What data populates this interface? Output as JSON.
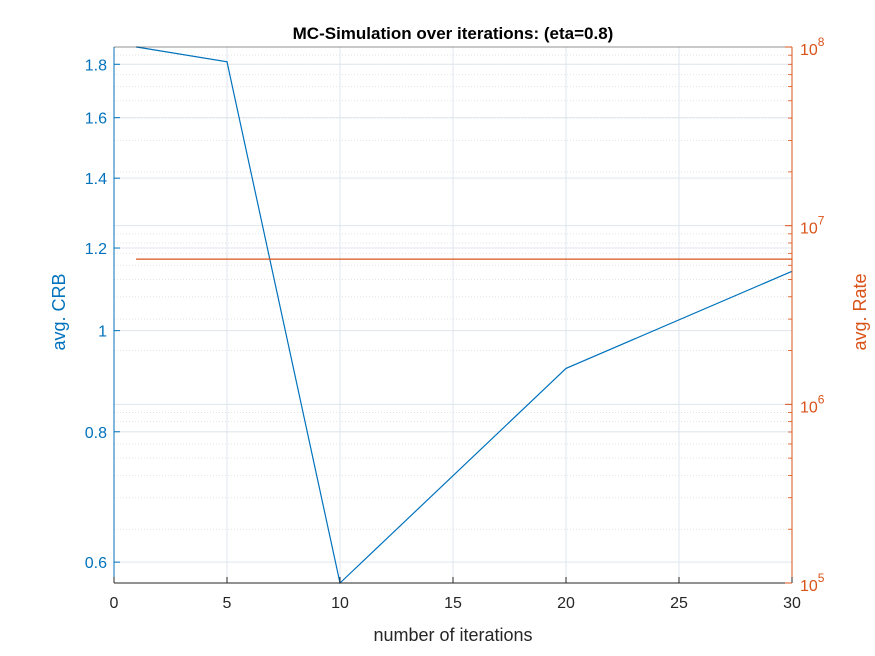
{
  "chart_data": {
    "type": "line",
    "title": "MC-Simulation over iterations: (eta=0.8)",
    "xlabel": "number of iterations",
    "xlim": [
      0,
      30
    ],
    "xticks": [
      0,
      5,
      10,
      15,
      20,
      25,
      30
    ],
    "grid": true,
    "y_left": {
      "label": "avg. CRB",
      "scale": "log",
      "lim": [
        0.573,
        1.87
      ],
      "ticks": [
        0.6,
        0.8,
        1,
        1.2,
        1.4,
        1.6,
        1.8
      ],
      "color": "#0072BD"
    },
    "y_right": {
      "label": "avg. Rate",
      "scale": "log",
      "lim": [
        100000,
        100000000
      ],
      "ticks": [
        {
          "value": 100000,
          "base": "10",
          "exp": "5"
        },
        {
          "value": 1000000,
          "base": "10",
          "exp": "6"
        },
        {
          "value": 10000000,
          "base": "10",
          "exp": "7"
        },
        {
          "value": 100000000,
          "base": "10",
          "exp": "8"
        }
      ],
      "color": "#D95319"
    },
    "series": [
      {
        "axis": "left",
        "color": "#0072BD",
        "x": [
          1,
          5,
          10,
          20,
          30
        ],
        "values": [
          1.87,
          1.81,
          0.573,
          0.92,
          1.14
        ]
      },
      {
        "axis": "right",
        "color": "#D95319",
        "x": [
          1,
          30
        ],
        "values": [
          6500000,
          6500000
        ]
      }
    ]
  }
}
